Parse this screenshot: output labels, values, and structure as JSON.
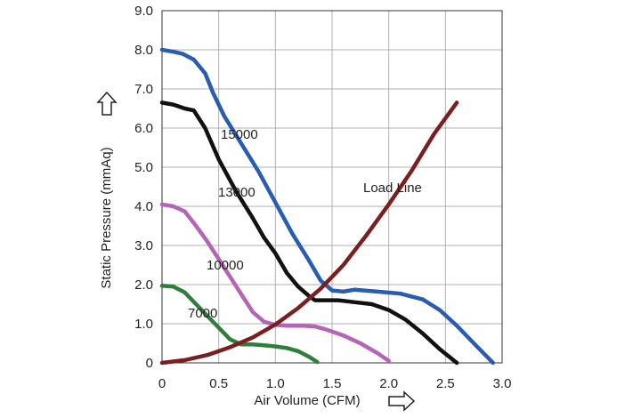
{
  "chart_data": {
    "type": "line",
    "xlabel": "Air Volume (CFM)",
    "ylabel": "Static Pressure (mmAq)",
    "xlim": [
      0,
      3.0
    ],
    "ylim": [
      0,
      9.0
    ],
    "x_ticks": [
      0,
      0.5,
      1.0,
      1.5,
      2.0,
      2.5,
      3.0
    ],
    "x_tick_labels": [
      "0",
      "0.5",
      "1.0",
      "1.5",
      "2.0",
      "2.5",
      "3.0"
    ],
    "y_ticks": [
      0,
      1,
      2,
      3,
      4,
      5,
      6,
      7,
      8,
      9
    ],
    "y_tick_labels": [
      "0",
      "1.0",
      "2.0",
      "3.0",
      "4.0",
      "5.0",
      "6.0",
      "7.0",
      "8.0",
      "9.0"
    ],
    "grid": true,
    "series": [
      {
        "name": "15000",
        "color": "#2a5db0",
        "points": [
          [
            0,
            8.0
          ],
          [
            0.1,
            7.95
          ],
          [
            0.18,
            7.9
          ],
          [
            0.28,
            7.75
          ],
          [
            0.38,
            7.4
          ],
          [
            0.45,
            6.9
          ],
          [
            0.55,
            6.3
          ],
          [
            0.7,
            5.6
          ],
          [
            0.85,
            4.9
          ],
          [
            1.0,
            4.1
          ],
          [
            1.15,
            3.3
          ],
          [
            1.3,
            2.6
          ],
          [
            1.4,
            2.1
          ],
          [
            1.5,
            1.85
          ],
          [
            1.6,
            1.82
          ],
          [
            1.7,
            1.87
          ],
          [
            1.9,
            1.82
          ],
          [
            2.1,
            1.77
          ],
          [
            2.3,
            1.62
          ],
          [
            2.45,
            1.35
          ],
          [
            2.6,
            0.95
          ],
          [
            2.75,
            0.5
          ],
          [
            2.92,
            0.0
          ]
        ]
      },
      {
        "name": "13000",
        "color": "#111111",
        "points": [
          [
            0,
            6.65
          ],
          [
            0.1,
            6.6
          ],
          [
            0.2,
            6.5
          ],
          [
            0.28,
            6.45
          ],
          [
            0.38,
            6.0
          ],
          [
            0.5,
            5.2
          ],
          [
            0.65,
            4.4
          ],
          [
            0.8,
            3.7
          ],
          [
            0.9,
            3.2
          ],
          [
            1.0,
            2.8
          ],
          [
            1.1,
            2.3
          ],
          [
            1.2,
            1.95
          ],
          [
            1.3,
            1.7
          ],
          [
            1.35,
            1.6
          ],
          [
            1.45,
            1.6
          ],
          [
            1.55,
            1.6
          ],
          [
            1.7,
            1.55
          ],
          [
            1.85,
            1.5
          ],
          [
            2.0,
            1.35
          ],
          [
            2.15,
            1.1
          ],
          [
            2.3,
            0.75
          ],
          [
            2.45,
            0.35
          ],
          [
            2.6,
            0.0
          ]
        ]
      },
      {
        "name": "10000",
        "color": "#b565b5",
        "points": [
          [
            0,
            4.05
          ],
          [
            0.1,
            4.0
          ],
          [
            0.2,
            3.87
          ],
          [
            0.3,
            3.5
          ],
          [
            0.4,
            3.1
          ],
          [
            0.5,
            2.65
          ],
          [
            0.6,
            2.2
          ],
          [
            0.7,
            1.75
          ],
          [
            0.8,
            1.3
          ],
          [
            0.9,
            1.05
          ],
          [
            1.0,
            0.97
          ],
          [
            1.1,
            0.95
          ],
          [
            1.25,
            0.95
          ],
          [
            1.35,
            0.93
          ],
          [
            1.45,
            0.85
          ],
          [
            1.6,
            0.7
          ],
          [
            1.75,
            0.5
          ],
          [
            1.9,
            0.25
          ],
          [
            2.0,
            0.05
          ]
        ]
      },
      {
        "name": "7000",
        "color": "#2f7f3a",
        "points": [
          [
            0,
            1.97
          ],
          [
            0.1,
            1.95
          ],
          [
            0.2,
            1.8
          ],
          [
            0.3,
            1.5
          ],
          [
            0.4,
            1.2
          ],
          [
            0.5,
            0.9
          ],
          [
            0.6,
            0.6
          ],
          [
            0.7,
            0.47
          ],
          [
            0.8,
            0.47
          ],
          [
            0.9,
            0.45
          ],
          [
            1.0,
            0.42
          ],
          [
            1.1,
            0.38
          ],
          [
            1.2,
            0.3
          ],
          [
            1.3,
            0.15
          ],
          [
            1.37,
            0.02
          ]
        ]
      },
      {
        "name": "Load Line",
        "color": "#7a1f1f",
        "points": [
          [
            0,
            0.0
          ],
          [
            0.2,
            0.07
          ],
          [
            0.4,
            0.2
          ],
          [
            0.6,
            0.4
          ],
          [
            0.8,
            0.65
          ],
          [
            1.0,
            0.98
          ],
          [
            1.2,
            1.4
          ],
          [
            1.4,
            1.9
          ],
          [
            1.6,
            2.5
          ],
          [
            1.8,
            3.25
          ],
          [
            2.0,
            4.05
          ],
          [
            2.2,
            4.9
          ],
          [
            2.4,
            5.85
          ],
          [
            2.6,
            6.65
          ]
        ]
      }
    ],
    "annotations": [
      {
        "text": "15000",
        "series": "15000"
      },
      {
        "text": "13000",
        "series": "13000"
      },
      {
        "text": "10000",
        "series": "10000"
      },
      {
        "text": "7000",
        "series": "7000"
      },
      {
        "text": "Load Line",
        "series": "Load Line"
      }
    ]
  }
}
